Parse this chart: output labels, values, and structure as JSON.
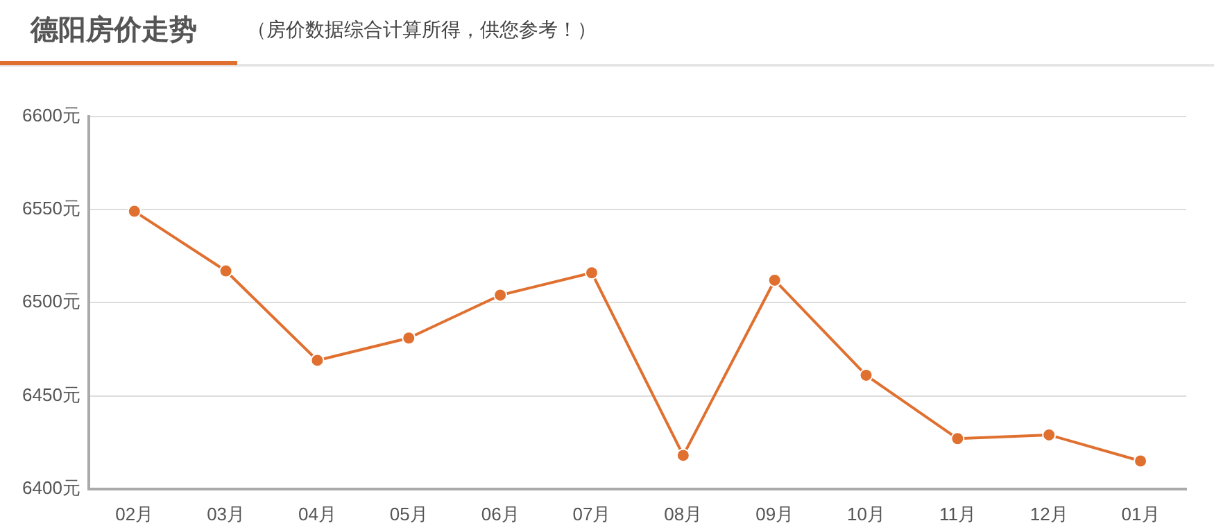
{
  "chart_data": {
    "type": "line",
    "title": "德阳房价走势",
    "subtitle": "（房价数据综合计算所得，供您参考！）",
    "categories": [
      "02月",
      "03月",
      "04月",
      "05月",
      "06月",
      "07月",
      "08月",
      "09月",
      "10月",
      "11月",
      "12月",
      "01月"
    ],
    "series": [
      {
        "color": "#e07030",
        "values": [
          6549,
          6517,
          6469,
          6481,
          6504,
          6516,
          6418,
          6512,
          6461,
          6427,
          6429,
          6415
        ]
      }
    ],
    "ylim": [
      6400,
      6600
    ],
    "yticks": [
      {
        "value": 6400,
        "label": "6400元"
      },
      {
        "value": 6450,
        "label": "6450元"
      },
      {
        "value": 6500,
        "label": "6500元"
      },
      {
        "value": 6550,
        "label": "6550元"
      },
      {
        "value": 6600,
        "label": "6600元"
      }
    ],
    "grid": "y",
    "legend": false,
    "marker": "circle",
    "line_style": "solid"
  }
}
